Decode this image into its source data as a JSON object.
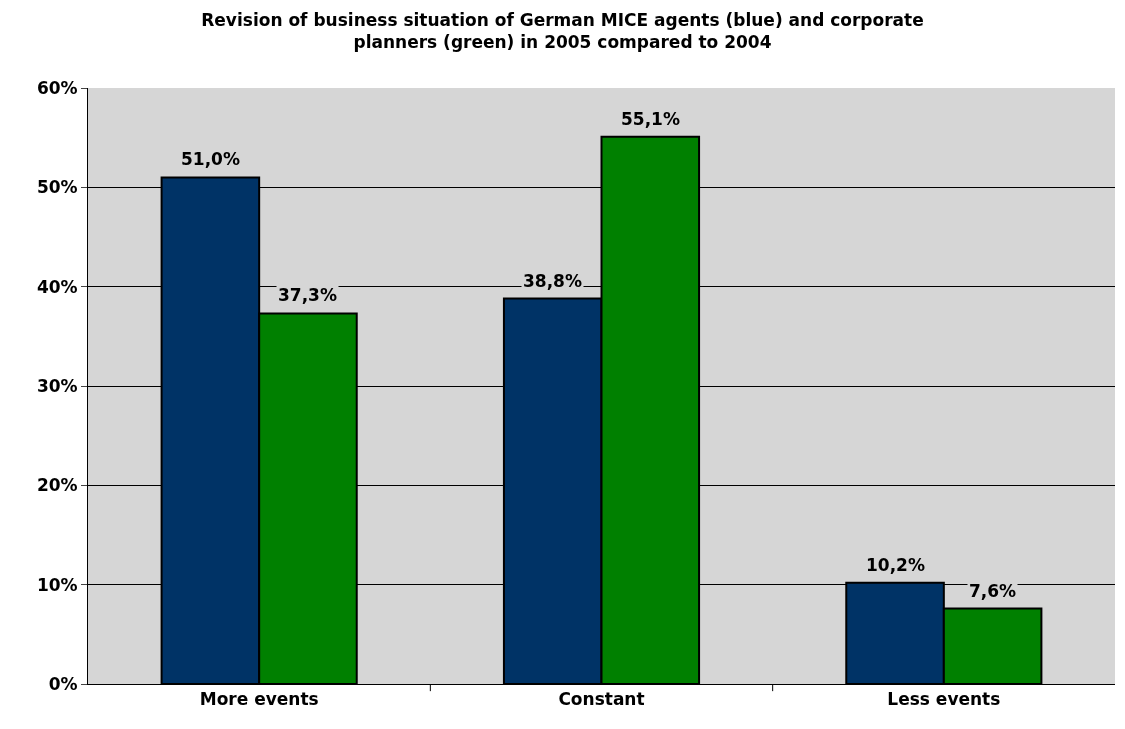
{
  "chart_data": {
    "type": "bar",
    "title": "Revision of business situation of German MICE agents (blue) and corporate planners (green) in 2005 compared to 2004",
    "categories": [
      "More events",
      "Constant",
      "Less events"
    ],
    "series": [
      {
        "color": "#003366",
        "values": [
          51.0,
          38.8,
          10.2
        ],
        "value_labels": [
          "51,0%",
          "38,8%",
          "10,2%"
        ]
      },
      {
        "color": "#008000",
        "values": [
          37.3,
          55.1,
          7.6
        ],
        "value_labels": [
          "37,3%",
          "55,1%",
          "7,6%"
        ]
      }
    ],
    "ylim": [
      0,
      60
    ],
    "yticks": [
      {
        "value": 0,
        "label": "0%"
      },
      {
        "value": 10,
        "label": "10%"
      },
      {
        "value": 20,
        "label": "20%"
      },
      {
        "value": 30,
        "label": "30%"
      },
      {
        "value": 40,
        "label": "40%"
      },
      {
        "value": 50,
        "label": "50%"
      },
      {
        "value": 60,
        "label": "60%"
      }
    ],
    "grid": "y",
    "legend": false
  }
}
